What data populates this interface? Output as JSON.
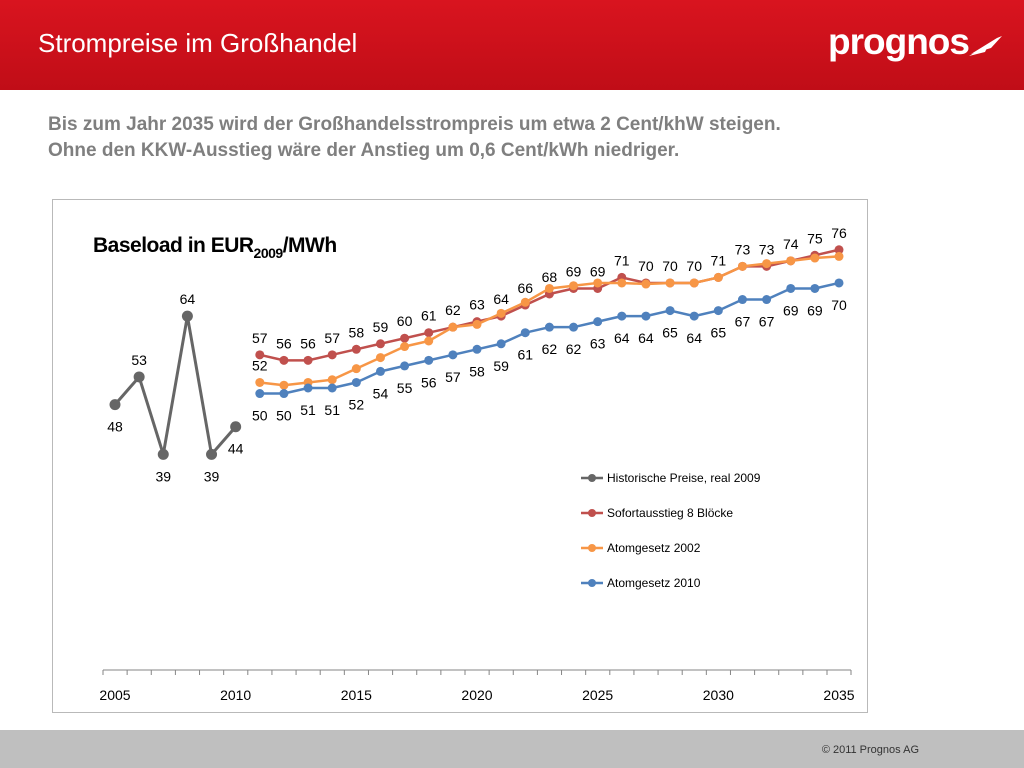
{
  "header": {
    "title": "Strompreise im Großhandel",
    "logo_text": "prognos",
    "bg_color": "#c8101a"
  },
  "subtitle": {
    "line1": "Bis zum Jahr 2035 wird der Großhandelsstrompreis um etwa 2 Cent/khW steigen.",
    "line2": "Ohne den KKW-Ausstieg wäre der Anstieg um 0,6 Cent/kWh niedriger."
  },
  "chart_data": {
    "type": "line",
    "title_main": "Baseload in EUR",
    "title_sub": "2009",
    "title_tail": "/MWh",
    "x_ticks": [
      2005,
      2010,
      2015,
      2020,
      2025,
      2030,
      2035
    ],
    "xlim": [
      2005,
      2035
    ],
    "ylim": [
      0,
      85
    ],
    "grid": false,
    "legend_position": "right-middle",
    "series": [
      {
        "name": "Historische Preise, real 2009",
        "color": "#666666",
        "x": [
          2005,
          2006,
          2007,
          2008,
          2009,
          2010
        ],
        "values": [
          48,
          53,
          39,
          64,
          39,
          44
        ],
        "labels": [
          "48",
          "53",
          "39",
          "64",
          "39",
          "44"
        ],
        "label_pos": [
          "below",
          "above",
          "below",
          "above",
          "below",
          "below"
        ]
      },
      {
        "name": "Sofortausstieg 8 Blöcke",
        "color": "#c0504d",
        "x": [
          2011,
          2012,
          2013,
          2014,
          2015,
          2016,
          2017,
          2018,
          2019,
          2020,
          2021,
          2022,
          2023,
          2024,
          2025,
          2026,
          2027,
          2028,
          2029,
          2030,
          2031,
          2032,
          2033,
          2034,
          2035
        ],
        "values": [
          57,
          56,
          56,
          57,
          58,
          59,
          60,
          61,
          62,
          63,
          64,
          66,
          68,
          69,
          69,
          71,
          70,
          70,
          70,
          71,
          73,
          73,
          74,
          75,
          76
        ],
        "labels": [
          "57",
          "56",
          "56",
          "57",
          "58",
          "59",
          "60",
          "61",
          "62",
          "63",
          "64",
          "66",
          "68",
          "69",
          "69",
          "71",
          "70",
          "70",
          "70",
          "71",
          "73",
          "73",
          "74",
          "75",
          "76"
        ],
        "label_pos": "above"
      },
      {
        "name": "Atomgesetz 2002",
        "color": "#f79646",
        "x": [
          2011,
          2012,
          2013,
          2014,
          2015,
          2016,
          2017,
          2018,
          2019,
          2020,
          2021,
          2022,
          2023,
          2024,
          2025,
          2026,
          2027,
          2028,
          2029,
          2030,
          2031,
          2032,
          2033,
          2034,
          2035
        ],
        "values": [
          52,
          51.5,
          52,
          52.5,
          54.5,
          56.5,
          58.5,
          59.5,
          62,
          62.5,
          64.5,
          66.5,
          69,
          69.5,
          70,
          70,
          69.8,
          70,
          70,
          71,
          73,
          73.5,
          74,
          74.5,
          74.8
        ],
        "labels": [
          "52"
        ],
        "label_pos": "above"
      },
      {
        "name": "Atomgesetz 2010",
        "color": "#4f81bd",
        "x": [
          2011,
          2012,
          2013,
          2014,
          2015,
          2016,
          2017,
          2018,
          2019,
          2020,
          2021,
          2022,
          2023,
          2024,
          2025,
          2026,
          2027,
          2028,
          2029,
          2030,
          2031,
          2032,
          2033,
          2034,
          2035
        ],
        "values": [
          50,
          50,
          51,
          51,
          52,
          54,
          55,
          56,
          57,
          58,
          59,
          61,
          62,
          62,
          63,
          64,
          64,
          65,
          64,
          65,
          67,
          67,
          69,
          69,
          70
        ],
        "labels": [
          "50",
          "50",
          "51",
          "51",
          "52",
          "54",
          "55",
          "56",
          "57",
          "58",
          "59",
          "61",
          "62",
          "62",
          "63",
          "64",
          "64",
          "65",
          "64",
          "65",
          "67",
          "67",
          "69",
          "69",
          "70"
        ],
        "label_pos": "below"
      }
    ]
  },
  "footer": {
    "copyright": "© 2011 Prognos AG"
  }
}
